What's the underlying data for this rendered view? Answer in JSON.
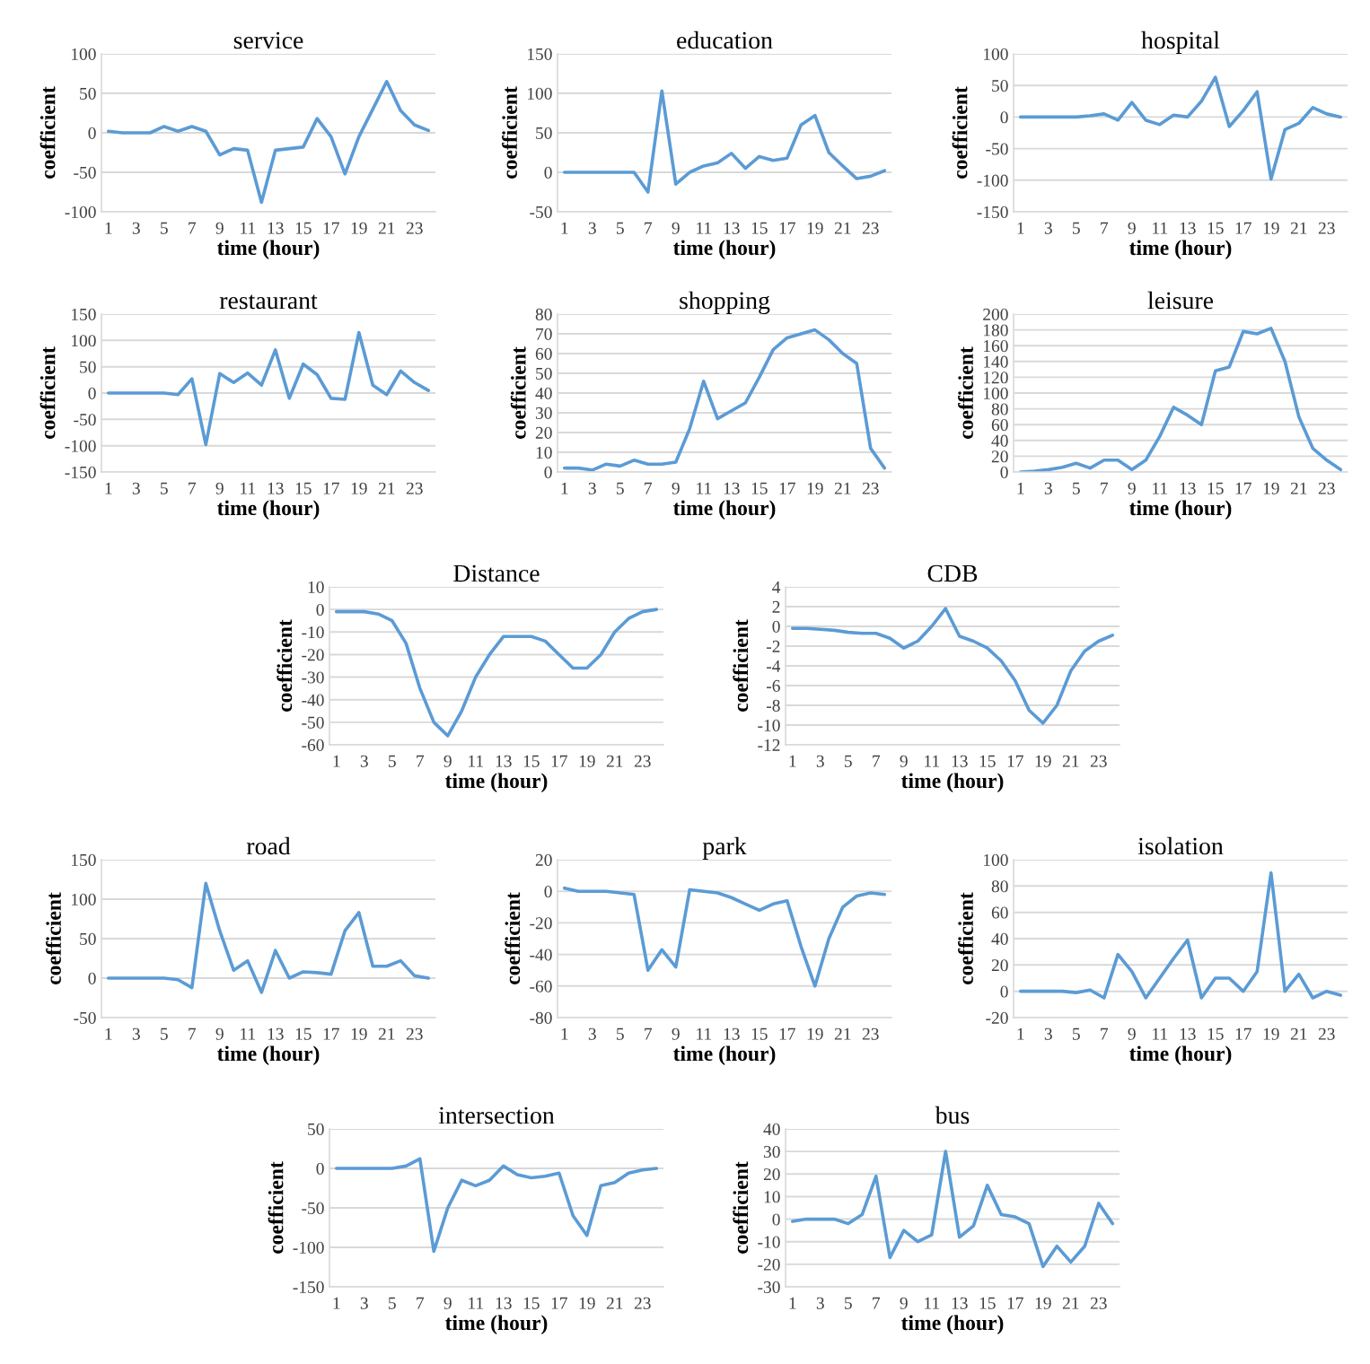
{
  "chart_data": [
    {
      "type": "line",
      "title": "service",
      "xlabel": "time (hour)",
      "ylabel": "coefficient",
      "categories": [
        "1",
        null,
        "3",
        null,
        "5",
        null,
        "7",
        null,
        "9",
        null,
        "11",
        null,
        "13",
        null,
        "15",
        null,
        "17",
        null,
        "19",
        null,
        "21",
        null,
        "23",
        null
      ],
      "series": [
        {
          "color": "#5b9bd5",
          "values": [
            2,
            0,
            0,
            0,
            8,
            2,
            8,
            2,
            -28,
            -20,
            -22,
            -88,
            -22,
            -20,
            -18,
            18,
            -5,
            -52,
            -5,
            30,
            65,
            28,
            10,
            3
          ]
        }
      ],
      "ylim": [
        -100,
        100
      ],
      "yticks": [
        -100,
        -50,
        0,
        50,
        100
      ],
      "grid": "y"
    },
    {
      "type": "line",
      "title": "education",
      "xlabel": "time (hour)",
      "ylabel": "coefficient",
      "categories": [
        "1",
        null,
        "3",
        null,
        "5",
        null,
        "7",
        null,
        "9",
        null,
        "11",
        null,
        "13",
        null,
        "15",
        null,
        "17",
        null,
        "19",
        null,
        "21",
        null,
        "23",
        null
      ],
      "series": [
        {
          "color": "#5b9bd5",
          "values": [
            0,
            0,
            0,
            0,
            0,
            0,
            -25,
            103,
            -15,
            0,
            8,
            12,
            24,
            5,
            20,
            15,
            18,
            60,
            72,
            25,
            8,
            -8,
            -5,
            2
          ]
        }
      ],
      "ylim": [
        -50,
        150
      ],
      "yticks": [
        -50,
        0,
        50,
        100,
        150
      ],
      "grid": "y"
    },
    {
      "type": "line",
      "title": "hospital",
      "xlabel": "time (hour)",
      "ylabel": "coefficient",
      "categories": [
        "1",
        null,
        "3",
        null,
        "5",
        null,
        "7",
        null,
        "9",
        null,
        "11",
        null,
        "13",
        null,
        "15",
        null,
        "17",
        null,
        "19",
        null,
        "21",
        null,
        "23",
        null
      ],
      "series": [
        {
          "color": "#5b9bd5",
          "values": [
            0,
            0,
            0,
            0,
            0,
            2,
            5,
            -5,
            23,
            -5,
            -12,
            3,
            0,
            25,
            63,
            -15,
            10,
            40,
            -98,
            -20,
            -10,
            15,
            5,
            0
          ]
        }
      ],
      "ylim": [
        -150,
        100
      ],
      "yticks": [
        -150,
        -100,
        -50,
        0,
        50,
        100
      ],
      "grid": "y"
    },
    {
      "type": "line",
      "title": "restaurant",
      "xlabel": "time (hour)",
      "ylabel": "coefficient",
      "categories": [
        "1",
        null,
        "3",
        null,
        "5",
        null,
        "7",
        null,
        "9",
        null,
        "11",
        null,
        "13",
        null,
        "15",
        null,
        "17",
        null,
        "19",
        null,
        "21",
        null,
        "23",
        null
      ],
      "series": [
        {
          "color": "#5b9bd5",
          "values": [
            0,
            0,
            0,
            0,
            0,
            -3,
            27,
            -98,
            37,
            20,
            38,
            15,
            82,
            -10,
            55,
            35,
            -10,
            -12,
            115,
            15,
            -3,
            42,
            20,
            5
          ]
        }
      ],
      "ylim": [
        -150,
        150
      ],
      "yticks": [
        -150,
        -100,
        -50,
        0,
        50,
        100,
        150
      ],
      "grid": "y"
    },
    {
      "type": "line",
      "title": "shopping",
      "xlabel": "time (hour)",
      "ylabel": "coefficient",
      "categories": [
        "1",
        null,
        "3",
        null,
        "5",
        null,
        "7",
        null,
        "9",
        null,
        "11",
        null,
        "13",
        null,
        "15",
        null,
        "17",
        null,
        "19",
        null,
        "21",
        null,
        "23",
        null
      ],
      "series": [
        {
          "color": "#5b9bd5",
          "values": [
            2,
            2,
            1,
            4,
            3,
            6,
            4,
            4,
            5,
            22,
            46,
            27,
            31,
            35,
            48,
            62,
            68,
            70,
            72,
            67,
            60,
            55,
            12,
            2
          ]
        }
      ],
      "ylim": [
        0,
        80
      ],
      "yticks": [
        0,
        10,
        20,
        30,
        40,
        50,
        60,
        70,
        80
      ],
      "grid": "y"
    },
    {
      "type": "line",
      "title": "leisure",
      "xlabel": "time (hour)",
      "ylabel": "coefficient",
      "categories": [
        "1",
        null,
        "3",
        null,
        "5",
        null,
        "7",
        null,
        "9",
        null,
        "11",
        null,
        "13",
        null,
        "15",
        null,
        "17",
        null,
        "19",
        null,
        "21",
        null,
        "23",
        null
      ],
      "series": [
        {
          "color": "#5b9bd5",
          "values": [
            0,
            1,
            3,
            6,
            11,
            5,
            15,
            15,
            3,
            15,
            45,
            82,
            72,
            60,
            128,
            133,
            178,
            175,
            182,
            140,
            70,
            30,
            15,
            3
          ]
        }
      ],
      "ylim": [
        0,
        200
      ],
      "yticks": [
        0,
        20,
        40,
        60,
        80,
        100,
        120,
        140,
        160,
        180,
        200
      ],
      "grid": "y"
    },
    {
      "type": "line",
      "title": "Distance",
      "xlabel": "time (hour)",
      "ylabel": "coefficient",
      "categories": [
        "1",
        null,
        "3",
        null,
        "5",
        null,
        "7",
        null,
        "9",
        null,
        "11",
        null,
        "13",
        null,
        "15",
        null,
        "17",
        null,
        "19",
        null,
        "21",
        null,
        "23",
        null
      ],
      "series": [
        {
          "color": "#5b9bd5",
          "values": [
            -1,
            -1,
            -1,
            -2,
            -5,
            -15,
            -35,
            -50,
            -56,
            -45,
            -30,
            -20,
            -12,
            -12,
            -12,
            -14,
            -20,
            -26,
            -26,
            -20,
            -10,
            -4,
            -1,
            0
          ]
        }
      ],
      "ylim": [
        -60,
        10
      ],
      "yticks": [
        -60,
        -50,
        -40,
        -30,
        -20,
        -10,
        0,
        10
      ],
      "grid": "y"
    },
    {
      "type": "line",
      "title": "CDB",
      "xlabel": "time (hour)",
      "ylabel": "coefficient",
      "categories": [
        "1",
        null,
        "3",
        null,
        "5",
        null,
        "7",
        null,
        "9",
        null,
        "11",
        null,
        "13",
        null,
        "15",
        null,
        "17",
        null,
        "19",
        null,
        "21",
        null,
        "23",
        null
      ],
      "series": [
        {
          "color": "#5b9bd5",
          "values": [
            -0.2,
            -0.2,
            -0.3,
            -0.4,
            -0.6,
            -0.7,
            -0.7,
            -1.2,
            -2.2,
            -1.5,
            0,
            1.8,
            -1,
            -1.5,
            -2.2,
            -3.5,
            -5.5,
            -8.5,
            -9.8,
            -8,
            -4.5,
            -2.5,
            -1.5,
            -0.9
          ]
        }
      ],
      "ylim": [
        -12,
        4
      ],
      "yticks": [
        -12,
        -10,
        -8,
        -6,
        -4,
        -2,
        0,
        2,
        4
      ],
      "grid": "y"
    },
    {
      "type": "line",
      "title": "road",
      "xlabel": "time (hour)",
      "ylabel": "coefficient",
      "categories": [
        "1",
        null,
        "3",
        null,
        "5",
        null,
        "7",
        null,
        "9",
        null,
        "11",
        null,
        "13",
        null,
        "15",
        null,
        "17",
        null,
        "19",
        null,
        "21",
        null,
        "23",
        null
      ],
      "series": [
        {
          "color": "#5b9bd5",
          "values": [
            0,
            0,
            0,
            0,
            0,
            -2,
            -12,
            120,
            60,
            10,
            22,
            -18,
            35,
            0,
            8,
            7,
            5,
            60,
            83,
            15,
            15,
            22,
            3,
            0
          ]
        }
      ],
      "ylim": [
        -50,
        150
      ],
      "yticks": [
        -50,
        0,
        50,
        100,
        150
      ],
      "grid": "y"
    },
    {
      "type": "line",
      "title": "park",
      "xlabel": "time (hour)",
      "ylabel": "coefficient",
      "categories": [
        "1",
        null,
        "3",
        null,
        "5",
        null,
        "7",
        null,
        "9",
        null,
        "11",
        null,
        "13",
        null,
        "15",
        null,
        "17",
        null,
        "19",
        null,
        "21",
        null,
        "23",
        null
      ],
      "series": [
        {
          "color": "#5b9bd5",
          "values": [
            2,
            0,
            0,
            0,
            -1,
            -2,
            -50,
            -37,
            -48,
            1,
            0,
            -1,
            -4,
            -8,
            -12,
            -8,
            -6,
            -35,
            -60,
            -30,
            -10,
            -3,
            -1,
            -2
          ]
        }
      ],
      "ylim": [
        -80,
        20
      ],
      "yticks": [
        -80,
        -60,
        -40,
        -20,
        0,
        20
      ],
      "grid": "y"
    },
    {
      "type": "line",
      "title": "isolation",
      "xlabel": "time (hour)",
      "ylabel": "coefficient",
      "categories": [
        "1",
        null,
        "3",
        null,
        "5",
        null,
        "7",
        null,
        "9",
        null,
        "11",
        null,
        "13",
        null,
        "15",
        null,
        "17",
        null,
        "19",
        null,
        "21",
        null,
        "23",
        null
      ],
      "series": [
        {
          "color": "#5b9bd5",
          "values": [
            0,
            0,
            0,
            0,
            -1,
            1,
            -5,
            28,
            15,
            -5,
            10,
            25,
            39,
            -5,
            10,
            10,
            0,
            15,
            90,
            0,
            13,
            -5,
            0,
            -3
          ]
        }
      ],
      "ylim": [
        -20,
        100
      ],
      "yticks": [
        -20,
        0,
        20,
        40,
        60,
        80,
        100
      ],
      "grid": "y"
    },
    {
      "type": "line",
      "title": "intersection",
      "xlabel": "time (hour)",
      "ylabel": "coefficient",
      "categories": [
        "1",
        null,
        "3",
        null,
        "5",
        null,
        "7",
        null,
        "9",
        null,
        "11",
        null,
        "13",
        null,
        "15",
        null,
        "17",
        null,
        "19",
        null,
        "21",
        null,
        "23",
        null
      ],
      "series": [
        {
          "color": "#5b9bd5",
          "values": [
            0,
            0,
            0,
            0,
            0,
            3,
            12,
            -105,
            -50,
            -15,
            -22,
            -15,
            3,
            -8,
            -12,
            -10,
            -6,
            -60,
            -85,
            -22,
            -18,
            -6,
            -2,
            0
          ]
        }
      ],
      "ylim": [
        -150,
        50
      ],
      "yticks": [
        -150,
        -100,
        -50,
        0,
        50
      ],
      "grid": "y"
    },
    {
      "type": "line",
      "title": "bus",
      "xlabel": "time (hour)",
      "ylabel": "coefficient",
      "categories": [
        "1",
        null,
        "3",
        null,
        "5",
        null,
        "7",
        null,
        "9",
        null,
        "11",
        null,
        "13",
        null,
        "15",
        null,
        "17",
        null,
        "19",
        null,
        "21",
        null,
        "23",
        null
      ],
      "series": [
        {
          "color": "#5b9bd5",
          "values": [
            -1,
            0,
            0,
            0,
            -2,
            2,
            19,
            -17,
            -5,
            -10,
            -7,
            30,
            -8,
            -3,
            15,
            2,
            1,
            -2,
            -21,
            -12,
            -19,
            -12,
            7,
            -2
          ]
        }
      ],
      "ylim": [
        -30,
        40
      ],
      "yticks": [
        -30,
        -20,
        -10,
        0,
        10,
        20,
        30,
        40
      ],
      "grid": "y"
    }
  ]
}
